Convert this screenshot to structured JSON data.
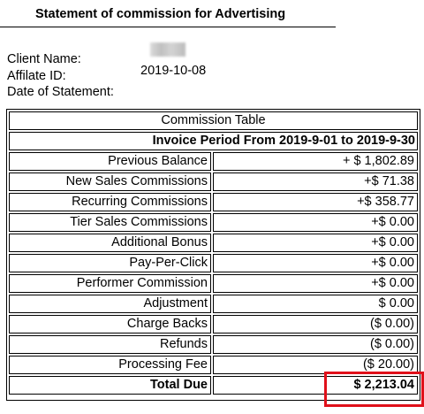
{
  "header": {
    "title": "Statement of commission for Advertising"
  },
  "client_info": {
    "client_name_label": "Client Name:",
    "affiliate_id_label": "Affilate ID:",
    "date_label": "Date of Statement:",
    "affiliate_id_value": "2019-10-08"
  },
  "table": {
    "caption": "Commission Table",
    "period": "Invoice Period From 2019-9-01 to 2019-9-30",
    "rows": [
      {
        "label": "Previous Balance",
        "value": "+ $ 1,802.89"
      },
      {
        "label": "New Sales Commissions",
        "value": "+$ 71.38"
      },
      {
        "label": "Recurring Commissions",
        "value": "+$ 358.77"
      },
      {
        "label": "Tier Sales Commissions",
        "value": "+$ 0.00"
      },
      {
        "label": "Additional Bonus",
        "value": "+$ 0.00"
      },
      {
        "label": "Pay-Per-Click",
        "value": "+$ 0.00"
      },
      {
        "label": "Performer Commission",
        "value": "+$ 0.00"
      },
      {
        "label": "Adjustment",
        "value": "$ 0.00"
      },
      {
        "label": "Charge Backs",
        "value": "($ 0.00)"
      },
      {
        "label": "Refunds",
        "value": "($ 0.00)"
      },
      {
        "label": "Processing Fee",
        "value": "($ 20.00)"
      }
    ],
    "total": {
      "label": "Total Due",
      "value": "$ 2,213.04"
    }
  },
  "colors": {
    "highlight": "#e0101a"
  }
}
